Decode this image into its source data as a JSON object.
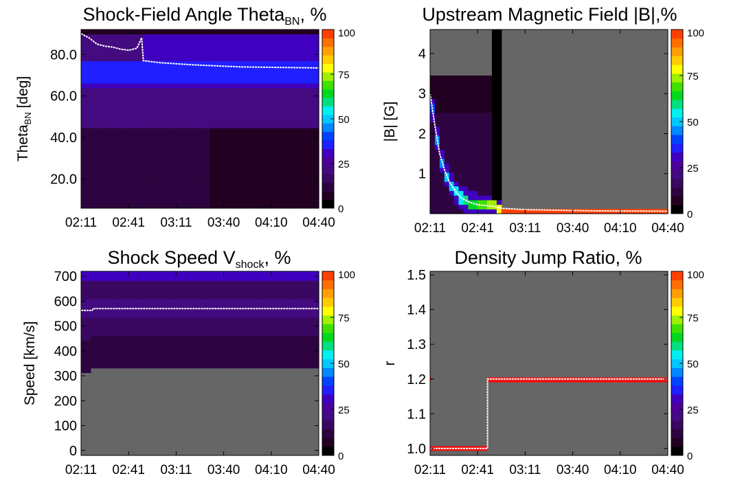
{
  "colorbar": {
    "ticks": [
      0,
      25,
      50,
      75,
      100
    ],
    "colors": [
      "#000000",
      "#220022",
      "#2e0440",
      "#3a0860",
      "#440a80",
      "#4c0099",
      "#4000c0",
      "#1f1fff",
      "#0044ff",
      "#0088ff",
      "#00c8ff",
      "#00f0f0",
      "#00e080",
      "#00d820",
      "#40e000",
      "#a0f000",
      "#ffff00",
      "#ffcc00",
      "#ffa000",
      "#ff7000",
      "#ff4000"
    ]
  },
  "chart_data": [
    {
      "id": "theta",
      "type": "heatmap",
      "title": "Shock-Field Angle Theta",
      "title_sub": "BN",
      "title_suffix": ", %",
      "ylabel": "Theta",
      "ylabel_sub": "BN",
      "ylabel_suffix": " [deg]",
      "x_ticks": [
        "02:11",
        "02:41",
        "03:11",
        "03:40",
        "04:10",
        "04:40"
      ],
      "x_range": [
        0,
        149
      ],
      "y_ticks": [
        20,
        40,
        60,
        80
      ],
      "y_tick_labels": [
        "20.0",
        "40.0",
        "60.0",
        "80.0"
      ],
      "ylim": [
        6,
        92
      ],
      "median": [
        [
          0,
          90
        ],
        [
          5,
          88
        ],
        [
          10,
          85
        ],
        [
          15,
          84
        ],
        [
          20,
          83.5
        ],
        [
          25,
          82.5
        ],
        [
          30,
          82
        ],
        [
          35,
          83
        ],
        [
          38,
          88
        ],
        [
          39,
          77
        ],
        [
          50,
          76
        ],
        [
          70,
          75
        ],
        [
          100,
          74
        ],
        [
          149,
          73.5
        ]
      ]
    },
    {
      "id": "bfield",
      "type": "heatmap",
      "title": "Upstream Magnetic Field |B|,%",
      "ylabel": "|B| [G]",
      "x_ticks": [
        "02:11",
        "02:41",
        "03:11",
        "03:40",
        "04:10",
        "04:40"
      ],
      "x_range": [
        0,
        149
      ],
      "y_ticks": [
        1,
        2,
        3,
        4
      ],
      "y_tick_labels": [
        "1",
        "2",
        "3",
        "4"
      ],
      "ylim": [
        0,
        4.6
      ],
      "median": [
        [
          0,
          3.0
        ],
        [
          3,
          2.2
        ],
        [
          6,
          1.5
        ],
        [
          9,
          1.1
        ],
        [
          12,
          0.8
        ],
        [
          16,
          0.55
        ],
        [
          20,
          0.38
        ],
        [
          25,
          0.28
        ],
        [
          30,
          0.22
        ],
        [
          35,
          0.2
        ],
        [
          40,
          0.18
        ],
        [
          45,
          0.13
        ],
        [
          60,
          0.1
        ],
        [
          100,
          0.07
        ],
        [
          149,
          0.06
        ]
      ]
    },
    {
      "id": "vshock",
      "type": "heatmap",
      "title": "Shock Speed V",
      "title_sub": "shock",
      "title_suffix": ", %",
      "ylabel": "Speed [km/s]",
      "x_ticks": [
        "02:11",
        "02:41",
        "03:11",
        "03:40",
        "04:10",
        "04:40"
      ],
      "x_range": [
        0,
        149
      ],
      "y_ticks": [
        0,
        100,
        200,
        300,
        400,
        500,
        600,
        700
      ],
      "y_tick_labels": [
        "0",
        "100",
        "200",
        "300",
        "400",
        "500",
        "600",
        "700"
      ],
      "ylim": [
        -20,
        720
      ],
      "median": [
        [
          0,
          563
        ],
        [
          7,
          563
        ],
        [
          7.5,
          570
        ],
        [
          149,
          570
        ]
      ]
    },
    {
      "id": "density",
      "type": "heatmap",
      "title": "Density Jump Ratio, %",
      "ylabel": "r",
      "x_ticks": [
        "02:11",
        "02:41",
        "03:11",
        "03:40",
        "04:10",
        "04:40"
      ],
      "x_range": [
        0,
        149
      ],
      "y_ticks": [
        1.0,
        1.1,
        1.2,
        1.3,
        1.4,
        1.5
      ],
      "y_tick_labels": [
        "1.0",
        "1.1",
        "1.2",
        "1.3",
        "1.4",
        "1.5"
      ],
      "ylim": [
        0.98,
        1.51
      ],
      "bands": [
        {
          "x0": 0,
          "x1": 36,
          "y0": 0.993,
          "y1": 1.007,
          "value": 100
        },
        {
          "x0": 36,
          "x1": 149,
          "y0": 1.19,
          "y1": 1.205,
          "value": 100
        },
        {
          "x0": 0,
          "x1": 1,
          "y0": 1.195,
          "y1": 1.205,
          "value": 100
        }
      ],
      "median": [
        [
          0,
          1.0
        ],
        [
          36,
          1.0
        ],
        [
          36,
          1.2
        ],
        [
          149,
          1.2
        ]
      ]
    }
  ]
}
